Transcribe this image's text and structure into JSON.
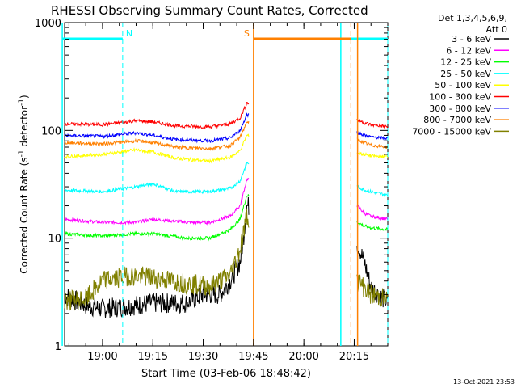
{
  "chart_data": {
    "type": "line",
    "title": "RHESSI Observing Summary Count Rates, Corrected",
    "xlabel": "Start Time (03-Feb-06 18:48:42)",
    "ylabel_main": "Corrected Count Rate (s",
    "ylabel_sup1": "-1",
    "ylabel_mid": " detector",
    "ylabel_sup2": "-1",
    "ylabel_end": ")",
    "yscale": "log",
    "ylim": [
      1,
      1000
    ],
    "xlim": [
      "18:48:42",
      "20:25:00"
    ],
    "x_ticks": [
      "19:00",
      "19:15",
      "19:30",
      "19:45",
      "20:00",
      "20:15"
    ],
    "y_ticks": [
      "1",
      "10",
      "100",
      "1000"
    ],
    "legend_header": [
      "Det 1,3,4,5,6,9,",
      "Att 0"
    ],
    "legend_placement": "right",
    "series": [
      {
        "name": "3 - 6 keV",
        "color": "#000000",
        "points": [
          [
            "18:48",
            3
          ],
          [
            "18:55",
            2.4
          ],
          [
            "19:00",
            2.2
          ],
          [
            "19:15",
            2.5
          ],
          [
            "19:25",
            2.5
          ],
          [
            "19:30",
            3
          ],
          [
            "19:35",
            3
          ],
          [
            "19:38",
            4
          ],
          [
            "19:41",
            6
          ],
          [
            "19:42",
            10
          ],
          [
            "19:43",
            20
          ],
          [
            "20:16",
            9
          ],
          [
            "20:18",
            6
          ],
          [
            "20:20",
            3.5
          ],
          [
            "20:25",
            2.5
          ]
        ]
      },
      {
        "name": "6 - 12 keV",
        "color": "#ff00ff",
        "points": [
          [
            "18:48",
            15
          ],
          [
            "19:00",
            14
          ],
          [
            "19:10",
            14
          ],
          [
            "19:15",
            15
          ],
          [
            "19:25",
            14
          ],
          [
            "19:32",
            14
          ],
          [
            "19:38",
            16
          ],
          [
            "19:41",
            20
          ],
          [
            "19:43",
            35
          ],
          [
            "20:16",
            20
          ],
          [
            "20:18",
            17
          ],
          [
            "20:20",
            16
          ],
          [
            "20:25",
            15
          ]
        ]
      },
      {
        "name": "12 - 25 keV",
        "color": "#00ff00",
        "points": [
          [
            "18:48",
            11
          ],
          [
            "19:00",
            10.5
          ],
          [
            "19:10",
            11
          ],
          [
            "19:15",
            11
          ],
          [
            "19:25",
            10
          ],
          [
            "19:32",
            10
          ],
          [
            "19:38",
            12
          ],
          [
            "19:41",
            15
          ],
          [
            "19:43",
            25
          ],
          [
            "20:16",
            14
          ],
          [
            "20:18",
            13
          ],
          [
            "20:20",
            12.5
          ],
          [
            "20:25",
            12
          ]
        ]
      },
      {
        "name": "25 - 50 keV",
        "color": "#00ffff",
        "points": [
          [
            "18:48",
            28
          ],
          [
            "19:00",
            27
          ],
          [
            "19:10",
            30
          ],
          [
            "19:15",
            32
          ],
          [
            "19:22",
            27
          ],
          [
            "19:32",
            27
          ],
          [
            "19:38",
            29
          ],
          [
            "19:41",
            34
          ],
          [
            "19:43",
            50
          ],
          [
            "20:16",
            30
          ],
          [
            "20:18",
            28
          ],
          [
            "20:20",
            27
          ],
          [
            "20:25",
            25
          ]
        ]
      },
      {
        "name": "50 - 100 keV",
        "color": "#ffff00",
        "points": [
          [
            "18:48",
            57
          ],
          [
            "19:00",
            60
          ],
          [
            "19:10",
            66
          ],
          [
            "19:15",
            63
          ],
          [
            "19:22",
            55
          ],
          [
            "19:32",
            52
          ],
          [
            "19:38",
            56
          ],
          [
            "19:41",
            65
          ],
          [
            "19:43",
            90
          ],
          [
            "20:16",
            62
          ],
          [
            "20:18",
            60
          ],
          [
            "20:20",
            58
          ],
          [
            "20:25",
            57
          ]
        ]
      },
      {
        "name": "100 - 300 keV",
        "color": "#ff0000",
        "points": [
          [
            "18:48",
            115
          ],
          [
            "19:00",
            113
          ],
          [
            "19:10",
            123
          ],
          [
            "19:15",
            120
          ],
          [
            "19:22",
            110
          ],
          [
            "19:32",
            108
          ],
          [
            "19:38",
            115
          ],
          [
            "19:41",
            130
          ],
          [
            "19:43",
            180
          ],
          [
            "20:16",
            125
          ],
          [
            "20:18",
            118
          ],
          [
            "20:20",
            113
          ],
          [
            "20:25",
            108
          ]
        ]
      },
      {
        "name": "300 - 800 keV",
        "color": "#0000ff",
        "points": [
          [
            "18:48",
            90
          ],
          [
            "19:00",
            88
          ],
          [
            "19:10",
            95
          ],
          [
            "19:15",
            90
          ],
          [
            "19:22",
            82
          ],
          [
            "19:32",
            80
          ],
          [
            "19:38",
            85
          ],
          [
            "19:41",
            100
          ],
          [
            "19:43",
            140
          ],
          [
            "20:16",
            96
          ],
          [
            "20:18",
            90
          ],
          [
            "20:20",
            87
          ],
          [
            "20:25",
            84
          ]
        ]
      },
      {
        "name": "800 - 7000 keV",
        "color": "#ff8000",
        "points": [
          [
            "18:48",
            77
          ],
          [
            "19:00",
            75
          ],
          [
            "19:10",
            80
          ],
          [
            "19:15",
            77
          ],
          [
            "19:22",
            70
          ],
          [
            "19:32",
            68
          ],
          [
            "19:38",
            72
          ],
          [
            "19:41",
            86
          ],
          [
            "19:43",
            120
          ],
          [
            "20:16",
            82
          ],
          [
            "20:18",
            77
          ],
          [
            "20:20",
            73
          ],
          [
            "20:25",
            70
          ]
        ]
      },
      {
        "name": "7000 - 15000 keV",
        "color": "#808000",
        "points": [
          [
            "18:48",
            2.6
          ],
          [
            "18:55",
            2.7
          ],
          [
            "19:00",
            4
          ],
          [
            "19:08",
            4.5
          ],
          [
            "19:15",
            4.3
          ],
          [
            "19:25",
            3.8
          ],
          [
            "19:32",
            3.6
          ],
          [
            "19:38",
            4.5
          ],
          [
            "19:41",
            8
          ],
          [
            "19:43",
            16
          ],
          [
            "20:16",
            4
          ],
          [
            "20:18",
            3.5
          ],
          [
            "20:20",
            3
          ],
          [
            "20:25",
            2.7
          ]
        ]
      }
    ],
    "annotations": [
      {
        "label": "N",
        "kind": "night",
        "color": "#00ffff",
        "bars": [
          [
            "18:48",
            "19:06"
          ],
          [
            "20:11",
            "20:25"
          ]
        ],
        "dashed_lines": [
          "19:06",
          "20:25"
        ],
        "solid_lines": [
          "18:48",
          "20:11"
        ]
      },
      {
        "label": "S",
        "kind": "saa",
        "color": "#ff8000",
        "bars": [
          [
            "19:45",
            "20:14"
          ]
        ],
        "solid_lines": [
          "19:45",
          "20:16"
        ],
        "dashed_lines": [
          "20:14"
        ]
      }
    ],
    "gaps": [
      [
        "19:44",
        "20:15"
      ]
    ],
    "timestamp": "13-Oct-2021 23:53"
  }
}
